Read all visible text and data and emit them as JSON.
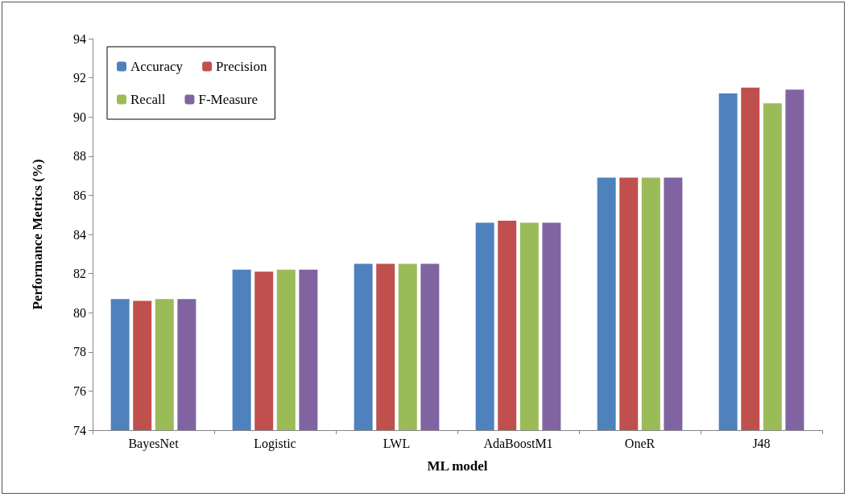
{
  "chart_data": {
    "type": "bar",
    "xlabel": "ML model",
    "ylabel": "Performance Metrics (%)",
    "categories": [
      "BayesNet",
      "Logistic",
      "LWL",
      "AdaBoostM1",
      "OneR",
      "J48"
    ],
    "series": [
      {
        "name": "Accuracy",
        "color": "#4f81bd",
        "values": [
          80.7,
          82.2,
          82.5,
          84.6,
          86.9,
          91.2
        ]
      },
      {
        "name": "Precision",
        "color": "#c0504d",
        "values": [
          80.6,
          82.1,
          82.5,
          84.7,
          86.9,
          91.5
        ]
      },
      {
        "name": "Recall",
        "color": "#9bbb59",
        "values": [
          80.7,
          82.2,
          82.5,
          84.6,
          86.9,
          90.7
        ]
      },
      {
        "name": "F-Measure",
        "color": "#8064a2",
        "values": [
          80.7,
          82.2,
          82.5,
          84.6,
          86.9,
          91.4
        ]
      }
    ],
    "ylim": [
      74,
      94
    ],
    "yticks": [
      74,
      76,
      78,
      80,
      82,
      84,
      86,
      88,
      90,
      92,
      94
    ],
    "grid": false,
    "legend": "top left"
  }
}
